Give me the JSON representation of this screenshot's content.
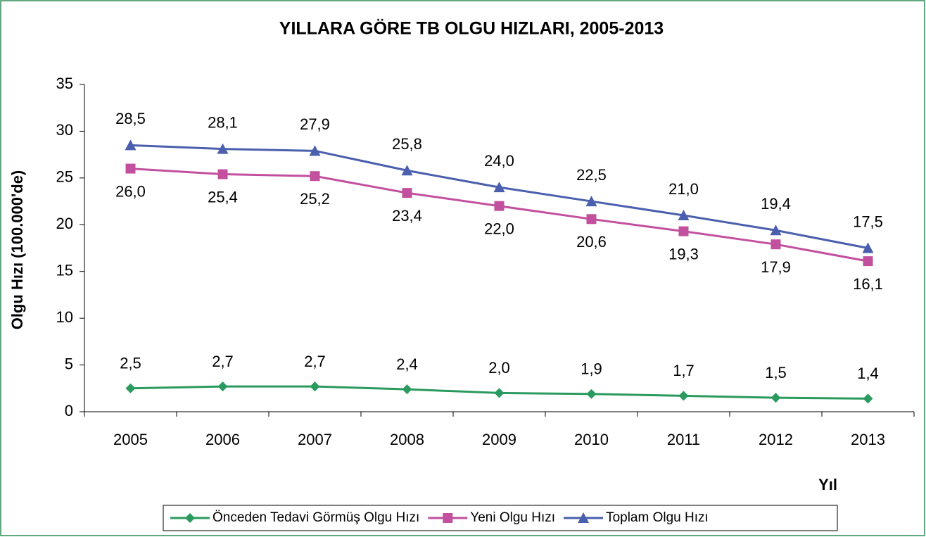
{
  "chart_data": {
    "type": "line",
    "title": "YILLARA GÖRE TB OLGU HIZLARI, 2005-2013",
    "x_label": "Yıl",
    "y_label": "Olgu Hızı (100.000'de)",
    "categories": [
      "2005",
      "2006",
      "2007",
      "2008",
      "2009",
      "2010",
      "2011",
      "2012",
      "2013"
    ],
    "ylim": [
      0,
      35
    ],
    "yticks": [
      0,
      5,
      10,
      15,
      20,
      25,
      30,
      35
    ],
    "legend": "bottom",
    "series": [
      {
        "name": "Önceden Tedavi Görmüş Olgu Hızı",
        "color": "#2a9a5e",
        "marker": "diamond",
        "values": [
          2.5,
          2.7,
          2.7,
          2.4,
          2.0,
          1.9,
          1.7,
          1.5,
          1.4
        ],
        "value_labels": [
          "2,5",
          "2,7",
          "2,7",
          "2,4",
          "2,0",
          "1,9",
          "1,7",
          "1,5",
          "1,4"
        ]
      },
      {
        "name": "Yeni Olgu Hızı",
        "color": "#c2509e",
        "marker": "square",
        "values": [
          26.0,
          25.4,
          25.2,
          23.4,
          22.0,
          20.6,
          19.3,
          17.9,
          16.1
        ],
        "value_labels": [
          "26,0",
          "25,4",
          "25,2",
          "23,4",
          "22,0",
          "20,6",
          "19,3",
          "17,9",
          "16,1"
        ]
      },
      {
        "name": "Toplam Olgu Hızı",
        "color": "#4a5fad",
        "marker": "triangle",
        "values": [
          28.5,
          28.1,
          27.9,
          25.8,
          24.0,
          22.5,
          21.0,
          19.4,
          17.5
        ],
        "value_labels": [
          "28,5",
          "28,1",
          "27,9",
          "25,8",
          "24,0",
          "22,5",
          "21,0",
          "19,4",
          "17,5"
        ]
      }
    ]
  }
}
